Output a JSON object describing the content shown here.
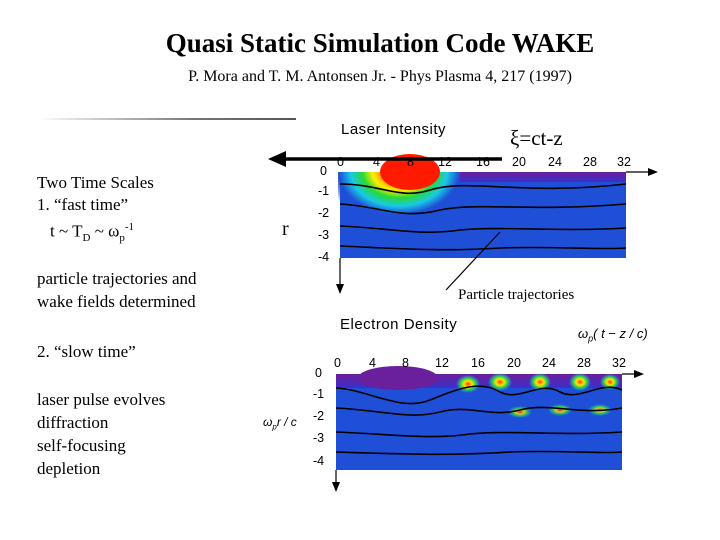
{
  "slide": {
    "title": "Quasi Static Simulation Code WAKE",
    "subtitle": "P. Mora and T. M. Antonsen Jr. - Phys Plasma 4, 217 (1997)"
  },
  "left_column": {
    "heading": "Two Time Scales",
    "item1": "1. “fast time”",
    "time_formula_prefix": "t ~ T",
    "time_formula_sub": "D",
    "time_formula_mid": " ~ ω",
    "time_formula_sub2": "p",
    "time_formula_sup": "-1",
    "fast_desc_line1": "particle trajectories and",
    "fast_desc_line2": "wake fields determined",
    "item2": "2. “slow time”",
    "slow_lines": [
      "laser pulse evolves",
      "diffraction",
      "self-focusing",
      "depletion"
    ]
  },
  "plot_top": {
    "title": "Laser Intensity",
    "xi_label": "ξ=ct-z",
    "r_label": "r",
    "x_ticks": [
      "0",
      "4",
      "8",
      "12",
      "16",
      "20",
      "24",
      "28",
      "32"
    ],
    "y_ticks": [
      "0",
      "-1",
      "-2",
      "-3",
      "-4"
    ],
    "trajectories_label": "Particle trajectories"
  },
  "plot_bottom": {
    "title": "Electron Density",
    "x_axis_label": "ω",
    "x_axis_sub": "p",
    "x_axis_rest": "( t − z / c)",
    "y_axis_label": "ω",
    "y_axis_sub": "p",
    "y_axis_rest": "r / c",
    "x_ticks": [
      "0",
      "4",
      "8",
      "12",
      "16",
      "20",
      "24",
      "28",
      "32"
    ],
    "y_ticks": [
      "0",
      "-1",
      "-2",
      "-3",
      "-4"
    ]
  },
  "colors": {
    "background": "#ffffff",
    "field_blue": "#1f4fd6",
    "hot_red": "#e8201a",
    "cool_purple": "#6a1f9c"
  }
}
